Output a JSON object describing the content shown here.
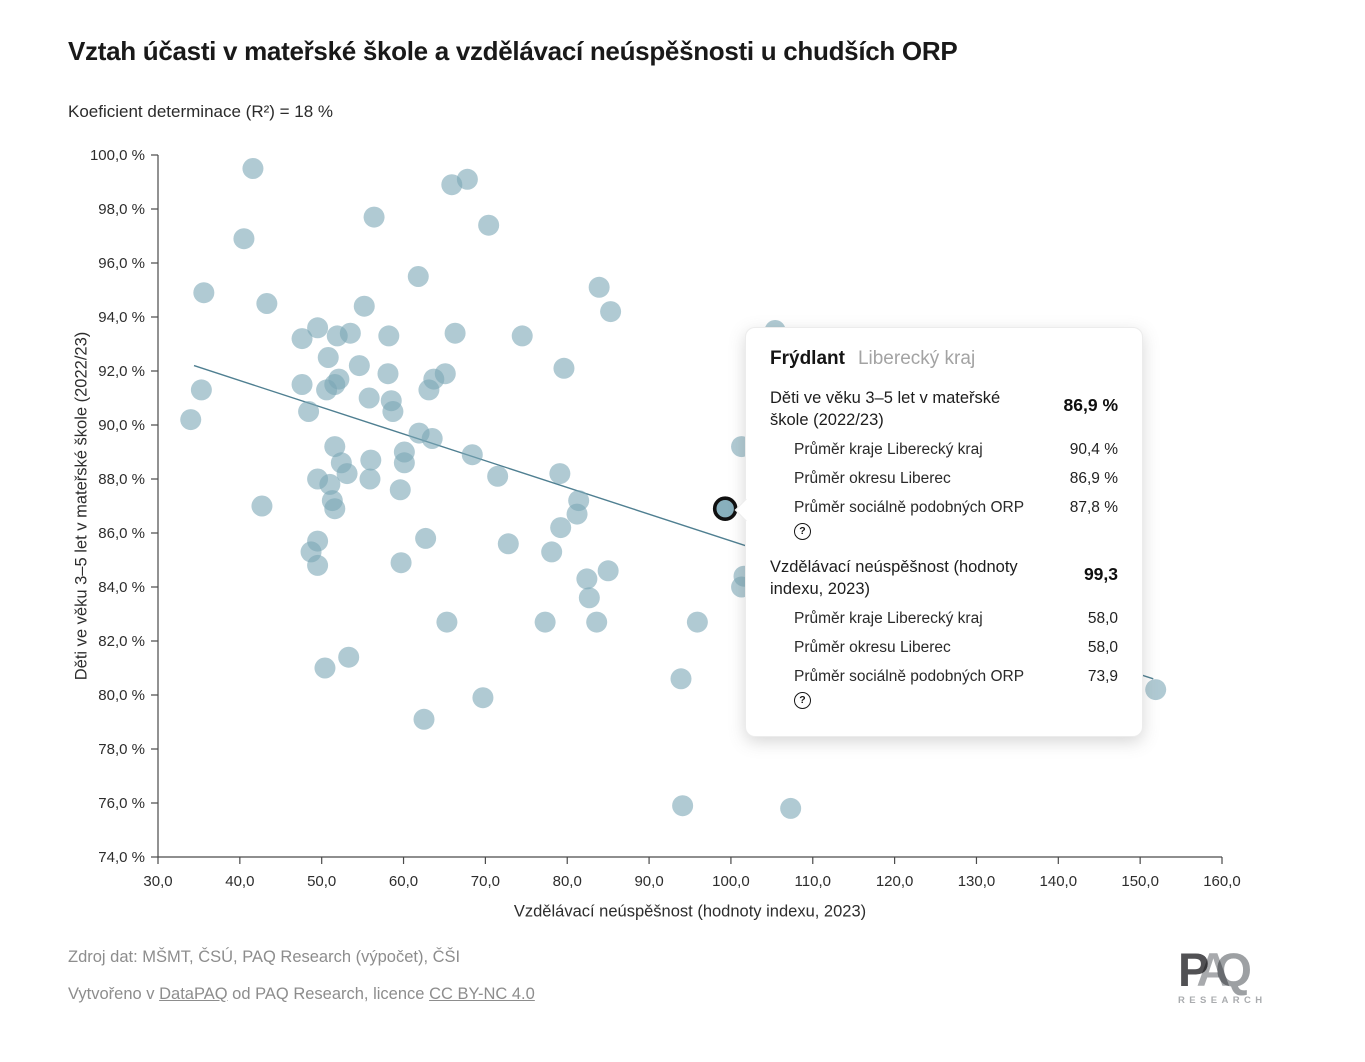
{
  "header": {
    "title": "Vztah účasti v mateřské škole a vzdělávací neúspěšnosti u chudších ORP",
    "subtitle": "Koeficient determinace (R²) = 18 %"
  },
  "chart_data": {
    "type": "scatter",
    "title": "Vztah účasti v mateřské škole a vzdělávací neúspěšnosti u chudších ORP",
    "xlabel": "Vzdělávací neúspěšnost (hodnoty indexu, 2023)",
    "ylabel": "Děti ve věku 3–5 let v mateřské škole (2022/23)",
    "xlim": [
      30,
      160
    ],
    "ylim": [
      74,
      100
    ],
    "grid": false,
    "x_ticks": [
      {
        "v": 30,
        "label": "30,0"
      },
      {
        "v": 40,
        "label": "40,0"
      },
      {
        "v": 50,
        "label": "50,0"
      },
      {
        "v": 60,
        "label": "60,0"
      },
      {
        "v": 70,
        "label": "70,0"
      },
      {
        "v": 80,
        "label": "80,0"
      },
      {
        "v": 90,
        "label": "90,0"
      },
      {
        "v": 100,
        "label": "100,0"
      },
      {
        "v": 110,
        "label": "110,0"
      },
      {
        "v": 120,
        "label": "120,0"
      },
      {
        "v": 130,
        "label": "130,0"
      },
      {
        "v": 140,
        "label": "140,0"
      },
      {
        "v": 150,
        "label": "150,0"
      },
      {
        "v": 160,
        "label": "160,0"
      }
    ],
    "y_ticks": [
      {
        "v": 74,
        "label": "74,0 %"
      },
      {
        "v": 76,
        "label": "76,0 %"
      },
      {
        "v": 78,
        "label": "78,0 %"
      },
      {
        "v": 80,
        "label": "80,0 %"
      },
      {
        "v": 82,
        "label": "82,0 %"
      },
      {
        "v": 84,
        "label": "84,0 %"
      },
      {
        "v": 86,
        "label": "86,0 %"
      },
      {
        "v": 88,
        "label": "88,0 %"
      },
      {
        "v": 90,
        "label": "90,0 %"
      },
      {
        "v": 92,
        "label": "92,0 %"
      },
      {
        "v": 94,
        "label": "94,0 %"
      },
      {
        "v": 96,
        "label": "96,0 %"
      },
      {
        "v": 98,
        "label": "98,0 %"
      },
      {
        "v": 100,
        "label": "100,0 %"
      }
    ],
    "points": [
      [
        41.6,
        99.5
      ],
      [
        65.9,
        98.9
      ],
      [
        67.8,
        99.1
      ],
      [
        56.4,
        97.7
      ],
      [
        40.5,
        96.9
      ],
      [
        70.4,
        97.4
      ],
      [
        61.8,
        95.5
      ],
      [
        35.6,
        94.9
      ],
      [
        43.3,
        94.5
      ],
      [
        55.2,
        94.4
      ],
      [
        83.9,
        95.1
      ],
      [
        85.3,
        94.2
      ],
      [
        49.5,
        93.6
      ],
      [
        47.6,
        93.2
      ],
      [
        51.9,
        93.3
      ],
      [
        53.5,
        93.4
      ],
      [
        58.2,
        93.3
      ],
      [
        66.3,
        93.4
      ],
      [
        74.5,
        93.3
      ],
      [
        105.4,
        93.5
      ],
      [
        50.8,
        92.5
      ],
      [
        54.6,
        92.2
      ],
      [
        58.1,
        91.9
      ],
      [
        79.6,
        92.1
      ],
      [
        35.3,
        91.3
      ],
      [
        47.6,
        91.5
      ],
      [
        50.6,
        91.3
      ],
      [
        51.6,
        91.5
      ],
      [
        52.1,
        91.7
      ],
      [
        55.8,
        91.0
      ],
      [
        58.5,
        90.9
      ],
      [
        58.7,
        90.5
      ],
      [
        63.7,
        91.7
      ],
      [
        65.1,
        91.9
      ],
      [
        63.1,
        91.3
      ],
      [
        34.0,
        90.2
      ],
      [
        48.4,
        90.5
      ],
      [
        61.9,
        89.7
      ],
      [
        63.5,
        89.5
      ],
      [
        51.6,
        89.2
      ],
      [
        60.1,
        89.0
      ],
      [
        68.4,
        88.9
      ],
      [
        101.3,
        89.2
      ],
      [
        52.4,
        88.6
      ],
      [
        53.1,
        88.2
      ],
      [
        56.0,
        88.7
      ],
      [
        55.9,
        88.0
      ],
      [
        60.1,
        88.6
      ],
      [
        71.5,
        88.1
      ],
      [
        79.1,
        88.2
      ],
      [
        49.5,
        88.0
      ],
      [
        51.0,
        87.8
      ],
      [
        59.6,
        87.6
      ],
      [
        42.7,
        87.0
      ],
      [
        51.3,
        87.2
      ],
      [
        51.6,
        86.9
      ],
      [
        81.4,
        87.2
      ],
      [
        81.2,
        86.7
      ],
      [
        79.2,
        86.2
      ],
      [
        78.1,
        85.3
      ],
      [
        49.5,
        85.7
      ],
      [
        48.7,
        85.3
      ],
      [
        72.8,
        85.6
      ],
      [
        62.7,
        85.8
      ],
      [
        49.5,
        84.8
      ],
      [
        59.7,
        84.9
      ],
      [
        82.4,
        84.3
      ],
      [
        85.0,
        84.6
      ],
      [
        101.6,
        84.4
      ],
      [
        101.3,
        84.0
      ],
      [
        82.7,
        83.6
      ],
      [
        77.3,
        82.7
      ],
      [
        83.6,
        82.7
      ],
      [
        95.9,
        82.7
      ],
      [
        65.3,
        82.7
      ],
      [
        53.3,
        81.4
      ],
      [
        50.4,
        81.0
      ],
      [
        93.9,
        80.6
      ],
      [
        69.7,
        79.9
      ],
      [
        62.5,
        79.1
      ],
      [
        151.9,
        80.2
      ],
      [
        94.1,
        75.9
      ],
      [
        107.3,
        75.8
      ]
    ],
    "highlight": {
      "x": 99.3,
      "y": 86.9,
      "label": "Frýdlant"
    },
    "trendline": {
      "x1": 34.4,
      "y1": 92.2,
      "x2": 151.6,
      "y2": 80.6
    },
    "colors": {
      "point": "#7ba7b6",
      "trend": "#4f7f91",
      "highlight_ring": "#101010",
      "axis": "#4a4a4a",
      "tick_label": "#2d2d2d"
    }
  },
  "tooltip": {
    "name": "Frýdlant",
    "region": "Liberecký kraj",
    "sections": [
      {
        "label": "Děti ve věku 3–5 let v mateřské škole (2022/23)",
        "value": "86,9 %",
        "rows": [
          {
            "label": "Průměr kraje Liberecký kraj",
            "value": "90,4 %"
          },
          {
            "label": "Průměr okresu Liberec",
            "value": "86,9 %"
          },
          {
            "label": "Průměr sociálně podobných ORP",
            "value": "87,8 %"
          }
        ]
      },
      {
        "label": "Vzdělávací neúspěšnost (hodnoty indexu, 2023)",
        "value": "99,3",
        "rows": [
          {
            "label": "Průměr kraje Liberecký kraj",
            "value": "58,0"
          },
          {
            "label": "Průměr okresu Liberec",
            "value": "58,0"
          },
          {
            "label": "Průměr sociálně podobných ORP",
            "value": "73,9"
          }
        ]
      }
    ],
    "info_icon": "?"
  },
  "footer": {
    "source": "Zdroj dat: MŠMT, ČSÚ, PAQ Research (výpočet), ČŠI",
    "created_prefix": "Vytvořeno v ",
    "created_link1": "DataPAQ",
    "created_middle": " od PAQ Research, licence ",
    "created_link2": "CC BY-NC 4.0"
  },
  "logo": {
    "p": "P",
    "a": "A",
    "q": "Q",
    "sub": "RESEARCH"
  }
}
